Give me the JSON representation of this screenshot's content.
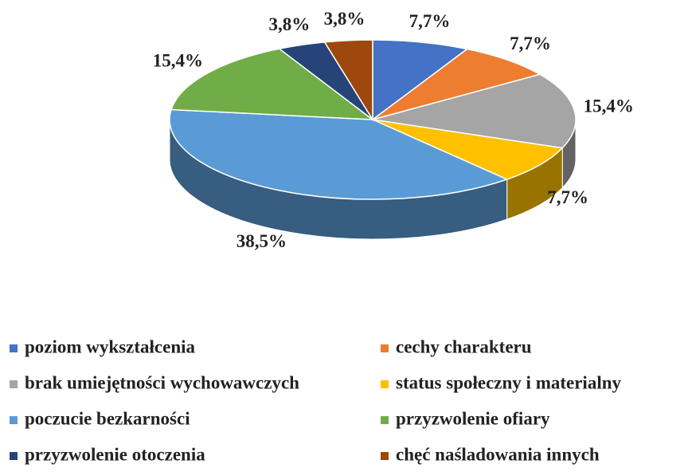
{
  "chart_data": {
    "type": "pie",
    "categories": [
      "poziom wykształcenia",
      "cechy charakteru",
      "brak umiejętności wychowawczych",
      "status społeczny i materialny",
      "poczucie bezkarności",
      "przyzwolenie ofiary",
      "przyzwolenie otoczenia",
      "chęć naśladowania innych"
    ],
    "values": [
      7.7,
      7.7,
      15.4,
      7.7,
      38.5,
      15.4,
      3.8,
      3.8
    ],
    "value_labels": [
      "7,7%",
      "7,7%",
      "15,4%",
      "7,7%",
      "38,5%",
      "15,4%",
      "3,8%",
      "3,8%"
    ],
    "colors": [
      "#4472c4",
      "#ed7d31",
      "#a5a5a5",
      "#ffc000",
      "#5b9bd5",
      "#70ad47",
      "#264478",
      "#9e480e"
    ],
    "legend": "bottom"
  }
}
